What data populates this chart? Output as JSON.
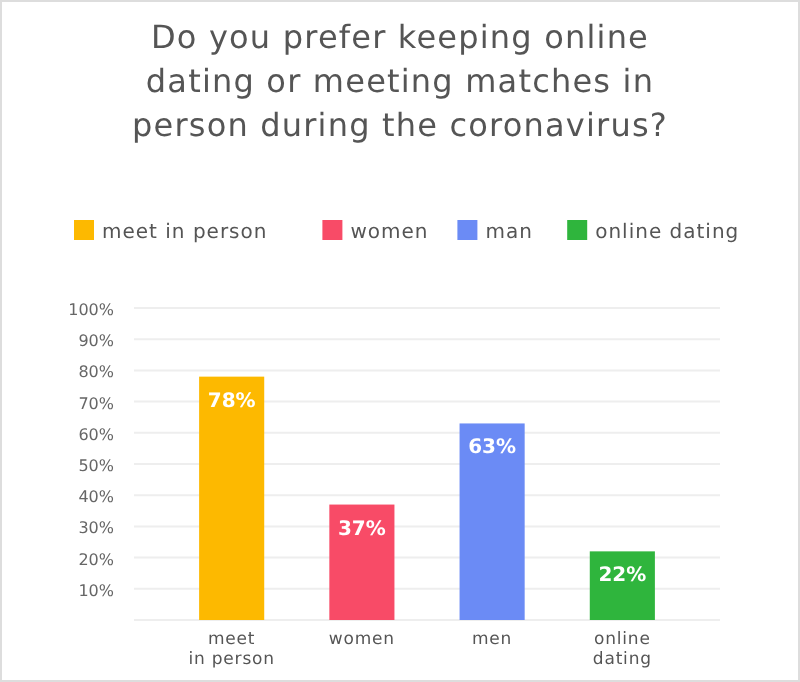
{
  "chart_data": {
    "type": "bar",
    "title": "Do you prefer keeping online dating or meeting matches in person during the coronavirus?",
    "categories": [
      "meet in person",
      "women",
      "men",
      "online dating"
    ],
    "series": [
      {
        "name": "meet in person",
        "color": "#fdb900",
        "values": [
          78,
          null,
          null,
          null
        ],
        "value_labels": [
          "78%",
          null,
          null,
          null
        ]
      },
      {
        "name": "women",
        "color": "#f84b67",
        "values": [
          null,
          37,
          null,
          null
        ],
        "value_labels": [
          null,
          "37%",
          null,
          null
        ]
      },
      {
        "name": "man",
        "color": "#6b8bf5",
        "values": [
          null,
          null,
          63,
          null
        ],
        "value_labels": [
          null,
          null,
          "63%",
          null
        ]
      },
      {
        "name": "online dating",
        "color": "#2fb53d",
        "values": [
          null,
          null,
          null,
          22
        ],
        "value_labels": [
          null,
          null,
          null,
          "22%"
        ]
      }
    ],
    "ylim": [
      0,
      100
    ],
    "yticks": [
      {
        "value": 10,
        "label": "10%"
      },
      {
        "value": 20,
        "label": "20%"
      },
      {
        "value": 30,
        "label": "30%"
      },
      {
        "value": 40,
        "label": "40%"
      },
      {
        "value": 50,
        "label": "50%"
      },
      {
        "value": 60,
        "label": "60%"
      },
      {
        "value": 70,
        "label": "70%"
      },
      {
        "value": 80,
        "label": "80%"
      },
      {
        "value": 90,
        "label": "90%"
      },
      {
        "value": 100,
        "label": "100%"
      }
    ],
    "grid": "y",
    "legend": "top left"
  }
}
